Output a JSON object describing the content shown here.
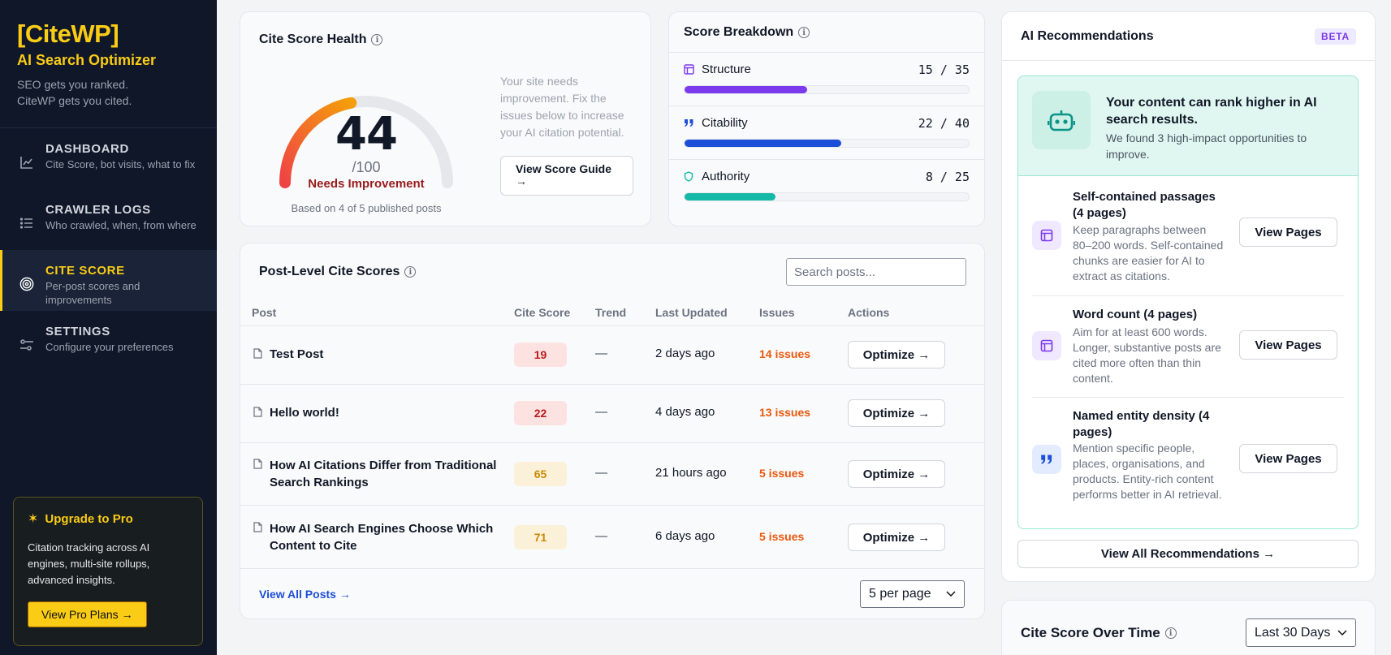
{
  "sidebar": {
    "logo": "[CiteWP]",
    "tagline": "AI Search Optimizer",
    "subtitle": [
      "SEO gets you ranked.",
      "CiteWP gets you cited."
    ],
    "nav": [
      {
        "title": "DASHBOARD",
        "desc": "Cite Score, bot visits, what to fix",
        "icon": "chart-line-icon"
      },
      {
        "title": "CRAWLER LOGS",
        "desc": "Who crawled, when, from where",
        "icon": "list-icon"
      },
      {
        "title": "CITE SCORE",
        "desc": "Per-post scores and improvements",
        "icon": "target-icon",
        "active": true
      },
      {
        "title": "SETTINGS",
        "desc": "Configure your preferences",
        "icon": "sliders-icon"
      }
    ],
    "upgrade": {
      "title": "Upgrade to Pro",
      "text": "Citation tracking across AI engines, multi-site rollups, advanced insights.",
      "button": "View Pro Plans →"
    }
  },
  "health": {
    "title": "Cite Score Health",
    "score": "44",
    "score_fraction": 0.44,
    "denominator": "/100",
    "status": "Needs Improvement",
    "based_on": "Based on 4 of 5 published posts",
    "message": "Your site needs improvement. Fix the issues below to increase your AI citation potential.",
    "guide_button": "View Score Guide →"
  },
  "breakdown": {
    "title": "Score Breakdown",
    "items": [
      {
        "label": "Structure",
        "value": "15 / 35",
        "fraction": 0.43,
        "color": "#7c3aed",
        "icon": "layout-icon"
      },
      {
        "label": "Citability",
        "value": "22 / 40",
        "fraction": 0.55,
        "color": "#1d4ed8",
        "icon": "quote-icon"
      },
      {
        "label": "Authority",
        "value": "8 / 25",
        "fraction": 0.32,
        "color": "#14b8a6",
        "icon": "shield-icon"
      }
    ]
  },
  "posts": {
    "title": "Post-Level Cite Scores",
    "search_placeholder": "Search posts...",
    "columns": [
      "Post",
      "Cite Score",
      "Trend",
      "Last Updated",
      "Issues",
      "Actions"
    ],
    "rows": [
      {
        "title": "Test Post",
        "score": "19",
        "trend": "—",
        "updated": "2 days ago",
        "issues": "14 issues",
        "action": "Optimize →",
        "tone": "low"
      },
      {
        "title": "Hello world!",
        "score": "22",
        "trend": "—",
        "updated": "4 days ago",
        "issues": "13 issues",
        "action": "Optimize →",
        "tone": "low"
      },
      {
        "title": "How AI Citations Differ from Traditional Search Rankings",
        "score": "65",
        "trend": "—",
        "updated": "21 hours ago",
        "issues": "5 issues",
        "action": "Optimize →",
        "tone": "mid"
      },
      {
        "title": "How AI Search Engines Choose Which Content to Cite",
        "score": "71",
        "trend": "—",
        "updated": "6 days ago",
        "issues": "5 issues",
        "action": "Optimize →",
        "tone": "mid"
      }
    ],
    "view_all": "View All Posts →",
    "per_page": "5 per page"
  },
  "ai": {
    "title": "AI Recommendations",
    "badge": "BETA",
    "hero_title": "Your content can rank higher in AI search results.",
    "hero_sub": "We found 3 high-impact opportunities to improve.",
    "recs": [
      {
        "title": "Self-contained passages (4 pages)",
        "desc": "Keep paragraphs between 80–200 words. Self-contained chunks are easier for AI to extract as citations.",
        "button": "View Pages",
        "icon": "layout-icon"
      },
      {
        "title": "Word count (4 pages)",
        "desc": "Aim for at least 600 words. Longer, substantive posts are cited more often than thin content.",
        "button": "View Pages",
        "icon": "layout-icon"
      },
      {
        "title": "Named entity density (4 pages)",
        "desc": "Mention specific people, places, organisations, and products. Entity-rich content performs better in AI retrieval.",
        "button": "View Pages",
        "icon": "quote-icon"
      }
    ],
    "view_all": "View All Recommendations →"
  },
  "overtime": {
    "title": "Cite Score Over Time",
    "range": "Last 30 Days"
  }
}
